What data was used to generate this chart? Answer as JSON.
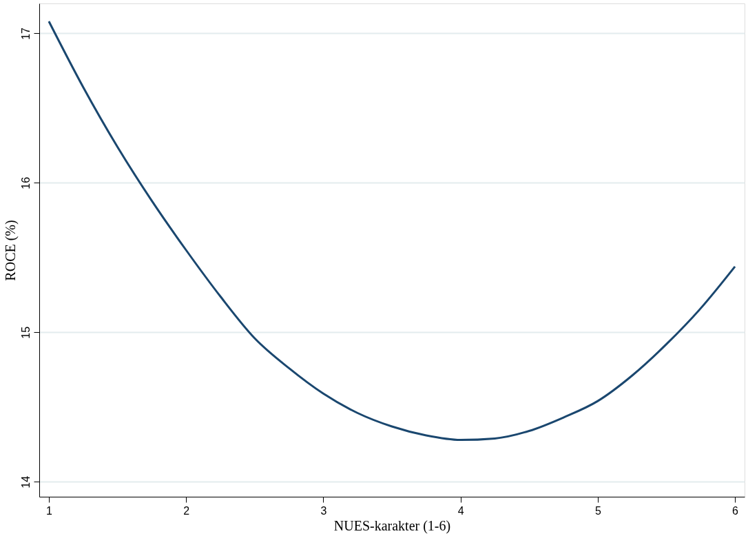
{
  "chart_data": {
    "type": "line",
    "xlabel": "NUES-karakter (1-6)",
    "ylabel": "ROCE (%)",
    "x": [
      1,
      1.25,
      1.5,
      1.75,
      2,
      2.25,
      2.5,
      2.75,
      3,
      3.25,
      3.5,
      3.75,
      4,
      4.25,
      4.5,
      4.75,
      5,
      5.25,
      5.5,
      5.75,
      6
    ],
    "series": [
      {
        "color": "#1a476f",
        "values": [
          17.08,
          16.64,
          16.24,
          15.88,
          15.55,
          15.24,
          14.96,
          14.76,
          14.59,
          14.46,
          14.37,
          14.31,
          14.28,
          14.29,
          14.34,
          14.43,
          14.54,
          14.71,
          14.92,
          15.16,
          15.44
        ]
      }
    ],
    "xlim": [
      0.93,
      6.07
    ],
    "ylim": [
      13.9,
      17.2
    ],
    "xticks": [
      1,
      2,
      3,
      4,
      5,
      6
    ],
    "yticks": [
      14,
      15,
      16,
      17
    ],
    "grid": "y",
    "line_style": "solid",
    "marker": "none"
  }
}
